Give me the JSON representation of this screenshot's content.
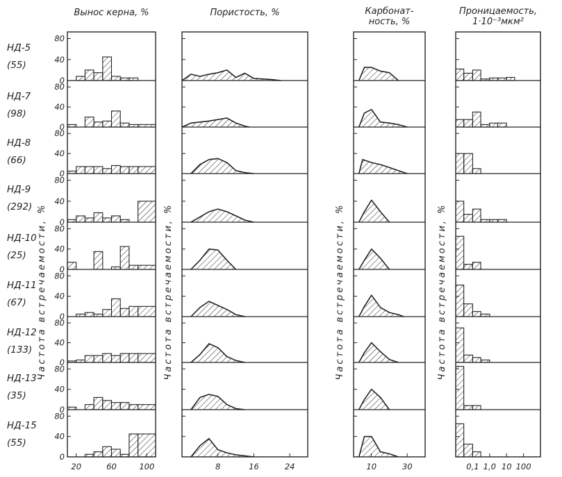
{
  "figure": {
    "colors": {
      "ink": "#222222",
      "paper": "#ffffff"
    },
    "wells": [
      {
        "name": "НД-5",
        "n": "(55)"
      },
      {
        "name": "НД-7",
        "n": "(98)"
      },
      {
        "name": "НД-8",
        "n": "(66)"
      },
      {
        "name": "НД-9",
        "n": "(292)"
      },
      {
        "name": "НД-10",
        "n": "(25)"
      },
      {
        "name": "НД-11",
        "n": "(67)"
      },
      {
        "name": "НД-12",
        "n": "(133)"
      },
      {
        "name": "НД-13",
        "n": "(35)"
      },
      {
        "name": "НД-15",
        "n": "(55)"
      }
    ],
    "side_labels": [
      "Частота встречаемости, %",
      "Частота встречаемости, %",
      "Частота встречаемости, %",
      "Частота встречаемости, %"
    ]
  },
  "chart_data": [
    {
      "type": "bar",
      "title": "Вынос керна, %",
      "xlim": [
        10,
        110
      ],
      "ylim": [
        0,
        90
      ],
      "x_ticks": [
        20,
        60,
        100
      ],
      "x_tick_labels": [
        "20",
        "60",
        "100"
      ],
      "y_ticks": [
        0,
        40,
        80
      ],
      "y_tick_labels": [
        "0",
        "40",
        "80"
      ],
      "bin_edges": [
        10,
        20,
        30,
        40,
        50,
        60,
        70,
        80,
        90,
        110
      ],
      "series": [
        {
          "well": "НД-5",
          "values": [
            0,
            8,
            20,
            15,
            45,
            8,
            5,
            5,
            0
          ]
        },
        {
          "well": "НД-7",
          "values": [
            5,
            0,
            20,
            10,
            12,
            32,
            8,
            5,
            5
          ]
        },
        {
          "well": "НД-8",
          "values": [
            5,
            14,
            14,
            14,
            10,
            16,
            14,
            14,
            14
          ]
        },
        {
          "well": "НД-9",
          "values": [
            5,
            12,
            8,
            18,
            8,
            12,
            5,
            0,
            40
          ]
        },
        {
          "well": "НД-10",
          "values": [
            14,
            0,
            0,
            35,
            0,
            5,
            45,
            8,
            8
          ]
        },
        {
          "well": "НД-11",
          "values": [
            0,
            5,
            8,
            5,
            14,
            35,
            16,
            20,
            20
          ]
        },
        {
          "well": "НД-12",
          "values": [
            3,
            5,
            14,
            14,
            18,
            14,
            18,
            18,
            18
          ]
        },
        {
          "well": "НД-13",
          "values": [
            5,
            0,
            10,
            24,
            18,
            14,
            14,
            10,
            10
          ]
        },
        {
          "well": "НД-15",
          "values": [
            0,
            0,
            5,
            10,
            20,
            15,
            5,
            45,
            45
          ]
        }
      ]
    },
    {
      "type": "area",
      "title": "Пористость, %",
      "xlim": [
        0,
        28
      ],
      "ylim": [
        0,
        90
      ],
      "x_ticks": [
        8,
        16,
        24
      ],
      "x_tick_labels": [
        "8",
        "16",
        "24"
      ],
      "y_ticks": [
        0,
        40,
        80
      ],
      "series": [
        {
          "well": "НД-5",
          "points": [
            [
              0,
              0
            ],
            [
              2,
              12
            ],
            [
              4,
              8
            ],
            [
              6,
              12
            ],
            [
              8,
              15
            ],
            [
              10,
              20
            ],
            [
              12,
              6
            ],
            [
              14,
              14
            ],
            [
              16,
              4
            ],
            [
              20,
              2
            ],
            [
              22,
              0
            ]
          ]
        },
        {
          "well": "НД-7",
          "points": [
            [
              0,
              0
            ],
            [
              2,
              8
            ],
            [
              4,
              10
            ],
            [
              6,
              12
            ],
            [
              8,
              15
            ],
            [
              10,
              18
            ],
            [
              12,
              8
            ],
            [
              14,
              2
            ],
            [
              15,
              0
            ]
          ]
        },
        {
          "well": "НД-8",
          "points": [
            [
              2,
              0
            ],
            [
              4,
              18
            ],
            [
              6,
              28
            ],
            [
              8,
              30
            ],
            [
              10,
              22
            ],
            [
              12,
              6
            ],
            [
              14,
              2
            ],
            [
              16,
              0
            ]
          ]
        },
        {
          "well": "НД-9",
          "points": [
            [
              2,
              0
            ],
            [
              4,
              10
            ],
            [
              6,
              20
            ],
            [
              8,
              25
            ],
            [
              10,
              20
            ],
            [
              12,
              12
            ],
            [
              14,
              4
            ],
            [
              16,
              0
            ]
          ]
        },
        {
          "well": "НД-10",
          "points": [
            [
              2,
              0
            ],
            [
              4,
              18
            ],
            [
              6,
              40
            ],
            [
              8,
              38
            ],
            [
              10,
              18
            ],
            [
              12,
              0
            ]
          ]
        },
        {
          "well": "НД-11",
          "points": [
            [
              2,
              0
            ],
            [
              4,
              18
            ],
            [
              6,
              30
            ],
            [
              8,
              22
            ],
            [
              10,
              14
            ],
            [
              12,
              4
            ],
            [
              14,
              0
            ]
          ]
        },
        {
          "well": "НД-12",
          "points": [
            [
              2,
              0
            ],
            [
              4,
              16
            ],
            [
              6,
              38
            ],
            [
              8,
              30
            ],
            [
              10,
              12
            ],
            [
              12,
              4
            ],
            [
              14,
              0
            ]
          ]
        },
        {
          "well": "НД-13",
          "points": [
            [
              2,
              0
            ],
            [
              4,
              24
            ],
            [
              6,
              30
            ],
            [
              8,
              26
            ],
            [
              10,
              10
            ],
            [
              12,
              2
            ],
            [
              14,
              0
            ]
          ]
        },
        {
          "well": "НД-15",
          "points": [
            [
              2,
              0
            ],
            [
              4,
              22
            ],
            [
              6,
              36
            ],
            [
              8,
              14
            ],
            [
              10,
              8
            ],
            [
              12,
              4
            ],
            [
              14,
              2
            ],
            [
              16,
              0
            ]
          ]
        }
      ]
    },
    {
      "type": "area",
      "title": "Карбонат-ность, %",
      "title_lines": [
        "Карбонат-",
        "ность, %"
      ],
      "xlim": [
        0,
        40
      ],
      "ylim": [
        0,
        90
      ],
      "x_ticks": [
        10,
        30
      ],
      "x_tick_labels": [
        "10",
        "30"
      ],
      "y_ticks": [
        0,
        40,
        80
      ],
      "series": [
        {
          "well": "НД-5",
          "points": [
            [
              3,
              0
            ],
            [
              6,
              25
            ],
            [
              10,
              25
            ],
            [
              15,
              18
            ],
            [
              20,
              15
            ],
            [
              25,
              0
            ]
          ]
        },
        {
          "well": "НД-7",
          "points": [
            [
              3,
              0
            ],
            [
              6,
              28
            ],
            [
              10,
              35
            ],
            [
              15,
              10
            ],
            [
              20,
              8
            ],
            [
              25,
              5
            ],
            [
              30,
              0
            ]
          ]
        },
        {
          "well": "НД-8",
          "points": [
            [
              3,
              0
            ],
            [
              5,
              28
            ],
            [
              10,
              22
            ],
            [
              15,
              18
            ],
            [
              20,
              12
            ],
            [
              25,
              6
            ],
            [
              30,
              0
            ]
          ]
        },
        {
          "well": "НД-9",
          "points": [
            [
              3,
              0
            ],
            [
              6,
              20
            ],
            [
              10,
              42
            ],
            [
              15,
              20
            ],
            [
              20,
              0
            ]
          ]
        },
        {
          "well": "НД-10",
          "points": [
            [
              3,
              0
            ],
            [
              6,
              18
            ],
            [
              10,
              40
            ],
            [
              15,
              22
            ],
            [
              20,
              0
            ]
          ]
        },
        {
          "well": "НД-11",
          "points": [
            [
              3,
              0
            ],
            [
              6,
              20
            ],
            [
              10,
              42
            ],
            [
              15,
              18
            ],
            [
              20,
              8
            ],
            [
              25,
              4
            ],
            [
              28,
              0
            ]
          ]
        },
        {
          "well": "НД-12",
          "points": [
            [
              3,
              0
            ],
            [
              6,
              20
            ],
            [
              10,
              40
            ],
            [
              15,
              22
            ],
            [
              20,
              6
            ],
            [
              25,
              0
            ]
          ]
        },
        {
          "well": "НД-13",
          "points": [
            [
              3,
              0
            ],
            [
              6,
              20
            ],
            [
              10,
              40
            ],
            [
              15,
              24
            ],
            [
              20,
              0
            ]
          ]
        },
        {
          "well": "НД-15",
          "points": [
            [
              3,
              0
            ],
            [
              6,
              40
            ],
            [
              10,
              40
            ],
            [
              15,
              10
            ],
            [
              20,
              6
            ],
            [
              25,
              0
            ]
          ]
        }
      ]
    },
    {
      "type": "bar",
      "title": "Проницаемость, 1·10⁻³мкм²",
      "title_lines": [
        "Проницаемость,",
        "1·10⁻³мкм²"
      ],
      "x_scale": "log",
      "xlim": [
        0.01,
        1000
      ],
      "ylim": [
        0,
        90
      ],
      "x_ticks": [
        0.1,
        1,
        10,
        100
      ],
      "x_tick_labels": [
        "0,1",
        "1,0",
        "10",
        "100"
      ],
      "y_ticks": [
        0,
        40,
        80
      ],
      "bin_edges": [
        0.01,
        0.03,
        0.1,
        0.3,
        1,
        3,
        10,
        30
      ],
      "series": [
        {
          "well": "НД-5",
          "values": [
            22,
            14,
            20,
            3,
            5,
            5,
            6
          ]
        },
        {
          "well": "НД-7",
          "values": [
            15,
            15,
            30,
            5,
            8,
            8,
            0
          ]
        },
        {
          "well": "НД-8",
          "values": [
            40,
            40,
            10,
            0,
            0,
            0,
            0
          ]
        },
        {
          "well": "НД-9",
          "values": [
            40,
            15,
            25,
            5,
            5,
            5,
            0
          ]
        },
        {
          "well": "НД-10",
          "values": [
            65,
            10,
            14,
            0,
            0,
            0,
            0
          ]
        },
        {
          "well": "НД-11",
          "values": [
            62,
            25,
            10,
            5,
            0,
            0,
            0
          ]
        },
        {
          "well": "НД-12",
          "values": [
            70,
            15,
            10,
            5,
            0,
            0,
            0
          ]
        },
        {
          "well": "НД-13",
          "values": [
            85,
            8,
            8,
            0,
            0,
            0,
            0
          ]
        },
        {
          "well": "НД-15",
          "values": [
            65,
            25,
            10,
            0,
            0,
            0,
            0
          ]
        }
      ]
    }
  ]
}
